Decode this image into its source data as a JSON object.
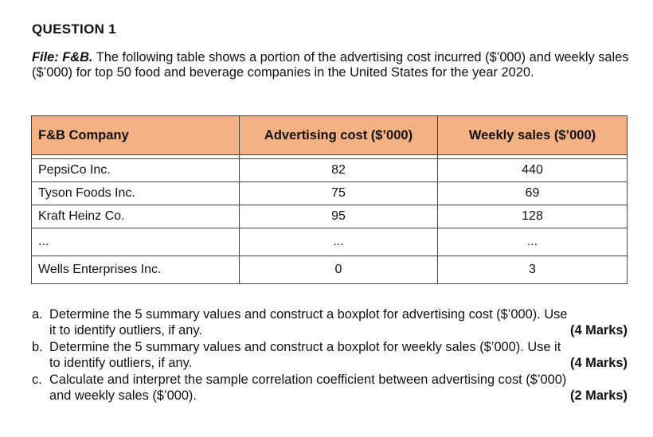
{
  "question_title": "QUESTION 1",
  "intro": {
    "file_label": "File: F&B.",
    "text": " The following table shows a portion of the advertising cost incurred ($’000) and weekly sales ($’000) for top 50 food and beverage companies in the United States for the year 2020."
  },
  "table": {
    "headers": [
      "F&B Company",
      "Advertising cost ($’000)",
      "Weekly sales ($’000)"
    ],
    "rows": [
      [
        "PepsiCo Inc.",
        "82",
        "440"
      ],
      [
        "Tyson Foods Inc.",
        "75",
        "69"
      ],
      [
        "Kraft Heinz Co.",
        "95",
        "128"
      ],
      [
        "...",
        "...",
        "..."
      ],
      [
        "Wells Enterprises Inc.",
        "0",
        "3"
      ]
    ]
  },
  "questions": [
    {
      "letter": "a.",
      "line1": "Determine the 5 summary values and construct a boxplot for advertising cost ($’000). Use",
      "line2": "it to identify outliers, if any.",
      "marks": "(4 Marks)"
    },
    {
      "letter": "b.",
      "line1": "Determine the 5 summary values and construct a boxplot for weekly sales ($’000). Use it",
      "line2": "to identify outliers, if any.",
      "marks": "(4 Marks)"
    },
    {
      "letter": "c.",
      "line1": "Calculate and interpret the sample correlation coefficient between advertising cost ($’000)",
      "line2": "and weekly sales ($’000).",
      "marks": "(2 Marks)"
    }
  ],
  "colors": {
    "header_background": "#f4b183",
    "border": "#444444"
  }
}
